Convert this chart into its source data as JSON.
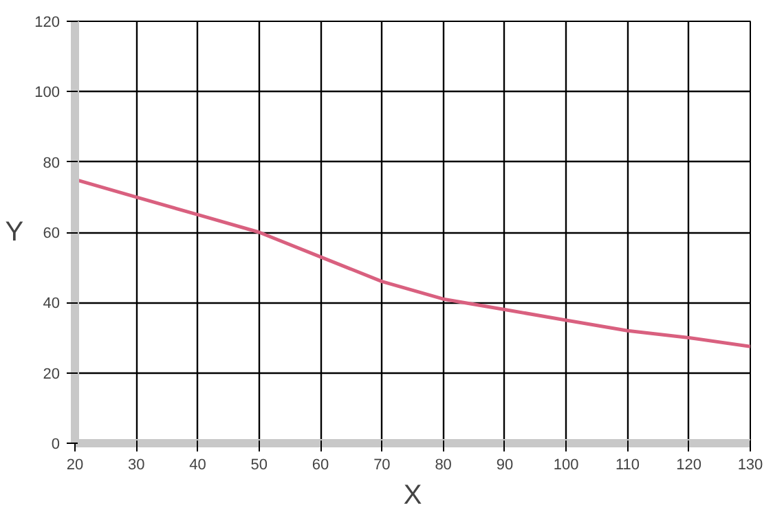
{
  "chart_data": {
    "type": "line",
    "xlabel": "X",
    "ylabel": "Y",
    "x": [
      20,
      30,
      40,
      50,
      60,
      70,
      80,
      90,
      100,
      110,
      120,
      130
    ],
    "series": [
      {
        "color": "#d9607f",
        "values": [
          75,
          70,
          65,
          60,
          53,
          46,
          41,
          38,
          35,
          32,
          30,
          27.5
        ]
      }
    ],
    "xlim": [
      20,
      130
    ],
    "ylim": [
      0,
      120
    ],
    "xticks": [
      20,
      30,
      40,
      50,
      60,
      70,
      80,
      90,
      100,
      110,
      120,
      130
    ],
    "yticks": [
      0,
      20,
      40,
      60,
      80,
      100,
      120
    ],
    "grid": true,
    "marker": "none",
    "line_style": "solid"
  }
}
